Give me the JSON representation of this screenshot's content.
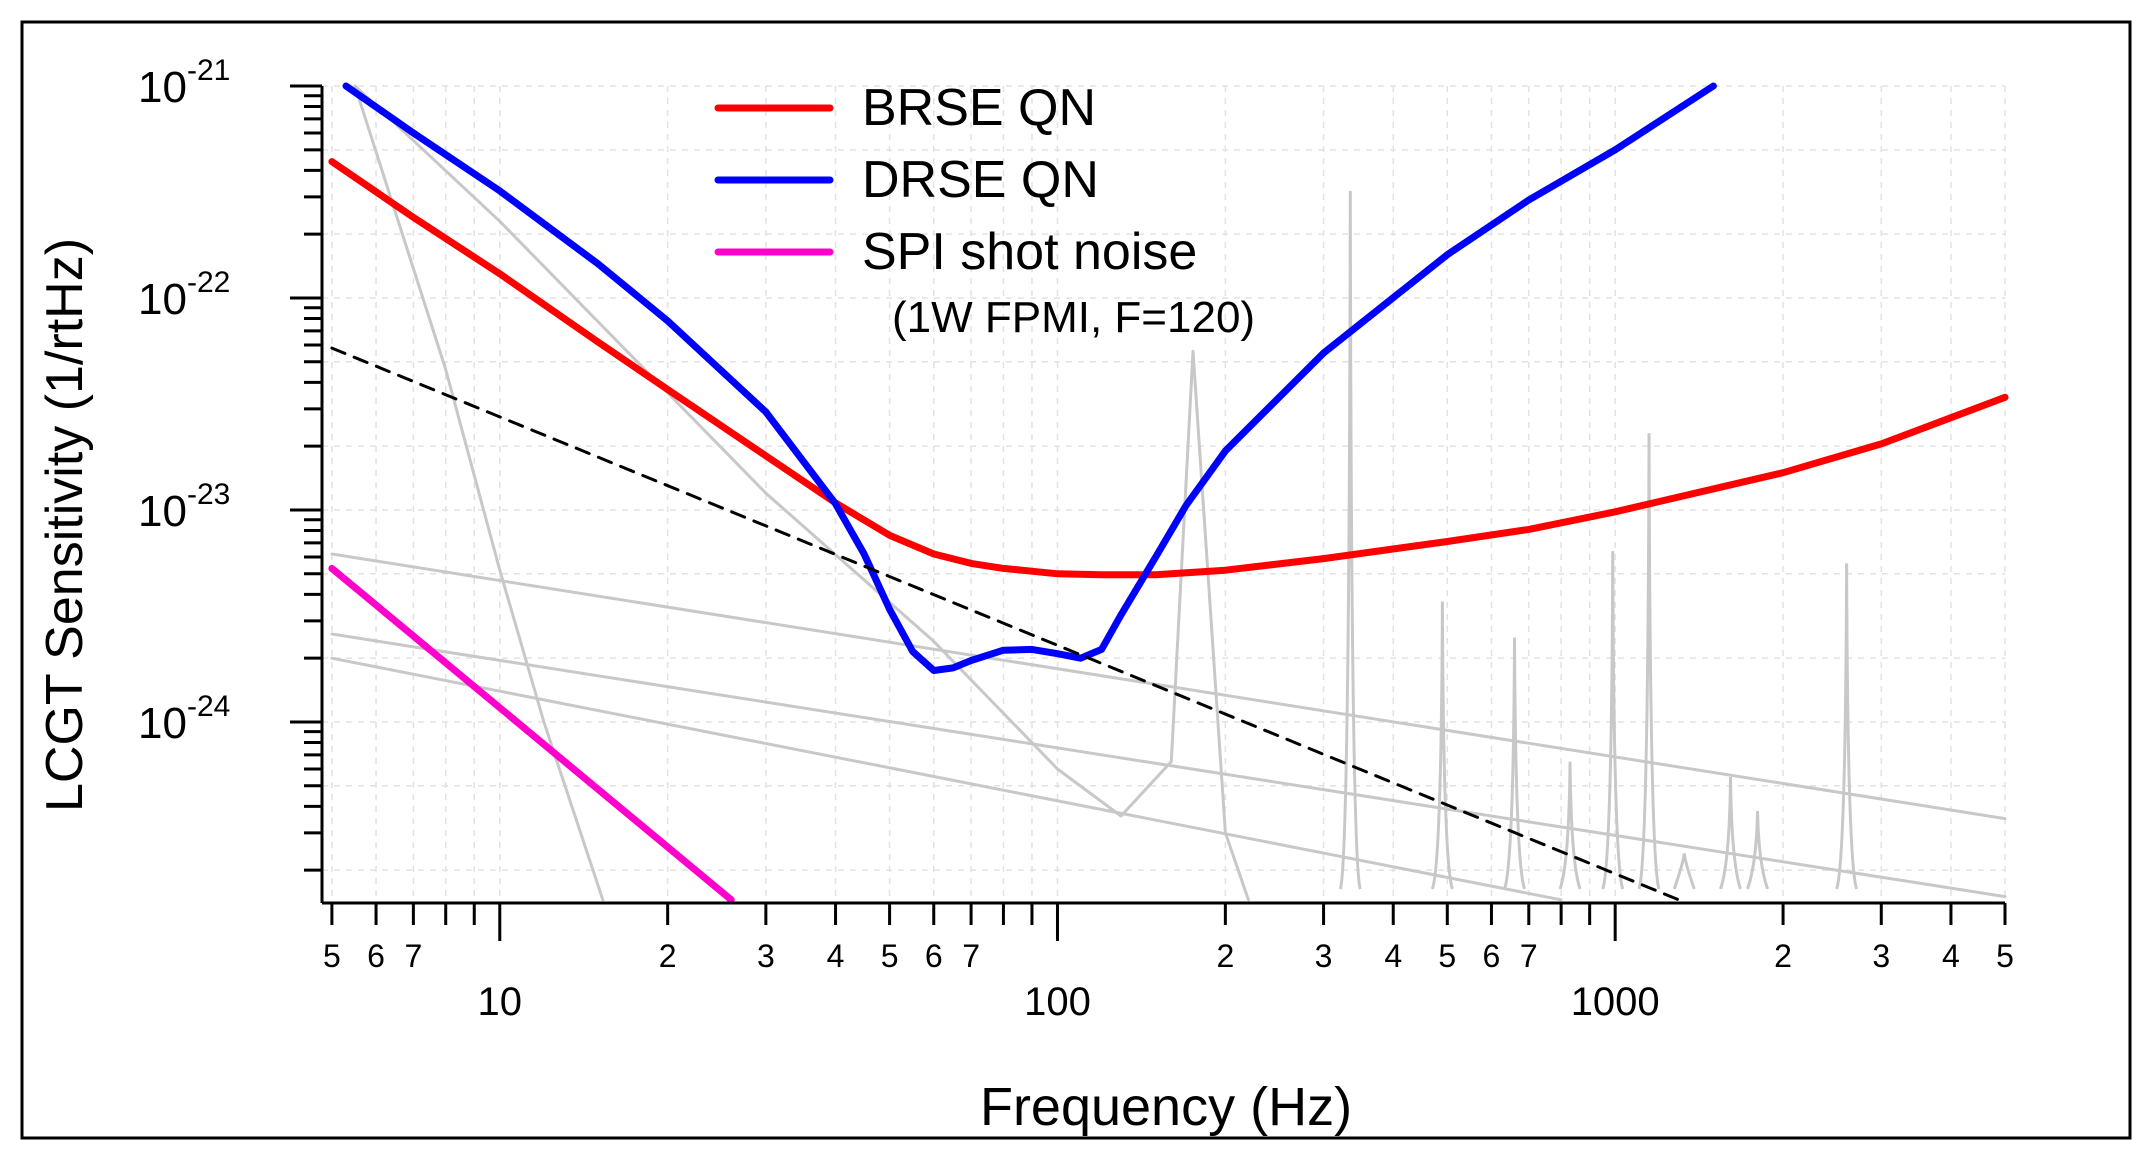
{
  "chart_data": {
    "type": "line",
    "title": "",
    "xlabel": "Frequency (Hz)",
    "ylabel": "LCGT Sensitivity (1/rtHz)",
    "xscale": "log",
    "yscale": "log",
    "xlim": [
      4.8,
      5000
    ],
    "ylim": [
      1.4e-25,
      1e-21
    ],
    "grid": true,
    "legend_position": "top-center",
    "legend_note": "(1W FPMI, F=120)",
    "x_major_ticks": [
      {
        "value": 10,
        "label": "10"
      },
      {
        "value": 100,
        "label": "100"
      },
      {
        "value": 1000,
        "label": "1000"
      }
    ],
    "x_minor_ticks": [
      {
        "value": 5,
        "label": "5"
      },
      {
        "value": 6,
        "label": "6"
      },
      {
        "value": 7,
        "label": "7"
      },
      {
        "value": 8,
        "label": ""
      },
      {
        "value": 9,
        "label": ""
      },
      {
        "value": 20,
        "label": "2"
      },
      {
        "value": 30,
        "label": "3"
      },
      {
        "value": 40,
        "label": "4"
      },
      {
        "value": 50,
        "label": "5"
      },
      {
        "value": 60,
        "label": "6"
      },
      {
        "value": 70,
        "label": "7"
      },
      {
        "value": 80,
        "label": ""
      },
      {
        "value": 90,
        "label": ""
      },
      {
        "value": 200,
        "label": "2"
      },
      {
        "value": 300,
        "label": "3"
      },
      {
        "value": 400,
        "label": "4"
      },
      {
        "value": 500,
        "label": "5"
      },
      {
        "value": 600,
        "label": "6"
      },
      {
        "value": 700,
        "label": "7"
      },
      {
        "value": 800,
        "label": ""
      },
      {
        "value": 900,
        "label": ""
      },
      {
        "value": 2000,
        "label": "2"
      },
      {
        "value": 3000,
        "label": "3"
      },
      {
        "value": 4000,
        "label": "4"
      },
      {
        "value": 5000,
        "label": "5"
      }
    ],
    "y_ticks": [
      {
        "value": 1e-21,
        "base": "10",
        "exp": "-21"
      },
      {
        "value": 1e-22,
        "base": "10",
        "exp": "-22"
      },
      {
        "value": 1e-23,
        "base": "10",
        "exp": "-23"
      },
      {
        "value": 1e-24,
        "base": "10",
        "exp": "-24"
      }
    ],
    "series": [
      {
        "name": "BRSE QN",
        "color": "#ff0000",
        "style": "solid",
        "width": 7,
        "x": [
          5,
          7,
          10,
          15,
          20,
          30,
          40,
          50,
          60,
          70,
          80,
          100,
          120,
          150,
          200,
          300,
          500,
          700,
          1000,
          2000,
          3000,
          5000
        ],
        "y": [
          4.4e-22,
          2.4e-22,
          1.3e-22,
          6.2e-23,
          3.7e-23,
          1.8e-23,
          1.08e-23,
          7.6e-24,
          6.2e-24,
          5.6e-24,
          5.3e-24,
          5e-24,
          4.95e-24,
          4.95e-24,
          5.2e-24,
          5.9e-24,
          7.1e-24,
          8.1e-24,
          9.8e-24,
          1.5e-23,
          2.05e-23,
          3.4e-23
        ]
      },
      {
        "name": "DRSE QN",
        "color": "#0000ff",
        "style": "solid",
        "width": 7,
        "x": [
          5.3,
          7,
          10,
          15,
          20,
          30,
          40,
          45,
          50,
          55,
          60,
          65,
          70,
          80,
          90,
          100,
          110,
          120,
          130,
          150,
          170,
          200,
          300,
          500,
          700,
          1000,
          1500
        ],
        "y": [
          1e-21,
          6e-22,
          3.2e-22,
          1.45e-22,
          7.8e-23,
          2.9e-23,
          1.07e-23,
          6.2e-24,
          3.4e-24,
          2.15e-24,
          1.75e-24,
          1.8e-24,
          1.95e-24,
          2.18e-24,
          2.2e-24,
          2.1e-24,
          2e-24,
          2.2e-24,
          3.2e-24,
          6e-24,
          1.05e-23,
          1.9e-23,
          5.5e-23,
          1.6e-22,
          2.9e-22,
          5e-22,
          1e-21
        ]
      },
      {
        "name": "SPI shot noise",
        "color": "#ff00cc",
        "style": "solid",
        "width": 7,
        "x": [
          5,
          26
        ],
        "y": [
          5.3e-24,
          1.45e-25
        ]
      },
      {
        "name": "",
        "color": "#000000",
        "style": "dashed",
        "width": 3,
        "x": [
          5,
          1300
        ],
        "y": [
          5.8e-23,
          1.45e-25
        ]
      },
      {
        "name": "",
        "color": "#c8c8c8",
        "style": "solid",
        "width": 3,
        "x": [
          5.5,
          8,
          10,
          12,
          15.3
        ],
        "y": [
          1e-21,
          4.6e-23,
          5.2e-24,
          1e-24,
          1.45e-25
        ]
      },
      {
        "name": "",
        "color": "#c8c8c8",
        "style": "solid",
        "width": 3,
        "x": [
          5.5,
          10,
          30,
          60,
          100,
          130,
          160,
          175,
          200,
          220
        ],
        "y": [
          1e-21,
          2.3e-22,
          1.2e-23,
          2.4e-24,
          6e-25,
          3.6e-25,
          6.5e-25,
          5.6e-23,
          3e-25,
          1.45e-25
        ]
      },
      {
        "name": "",
        "color": "#c8c8c8",
        "style": "solid",
        "width": 3,
        "x": [
          5,
          5000
        ],
        "y": [
          6.2e-24,
          3.5e-25
        ]
      },
      {
        "name": "",
        "color": "#c8c8c8",
        "style": "solid",
        "width": 3,
        "x": [
          5,
          5000
        ],
        "y": [
          2.6e-24,
          1.5e-25
        ]
      },
      {
        "name": "",
        "color": "#c8c8c8",
        "style": "solid",
        "width": 3,
        "x": [
          5,
          800
        ],
        "y": [
          2e-24,
          1.45e-25
        ]
      }
    ],
    "resonance_peaks": [
      {
        "x": 335,
        "top": 3.2e-22
      },
      {
        "x": 490,
        "top": 3.7e-24
      },
      {
        "x": 660,
        "top": 2.5e-24
      },
      {
        "x": 830,
        "top": 6.5e-25
      },
      {
        "x": 990,
        "top": 6.4e-24
      },
      {
        "x": 1150,
        "top": 2.3e-23
      },
      {
        "x": 1330,
        "top": 2.4e-25
      },
      {
        "x": 1610,
        "top": 5.5e-25
      },
      {
        "x": 1800,
        "top": 3.8e-25
      },
      {
        "x": 2600,
        "top": 5.6e-24
      }
    ],
    "colors": {
      "axes": "#000000",
      "grid": "#e2e2e2",
      "noise_curves": "#c8c8c8"
    }
  }
}
